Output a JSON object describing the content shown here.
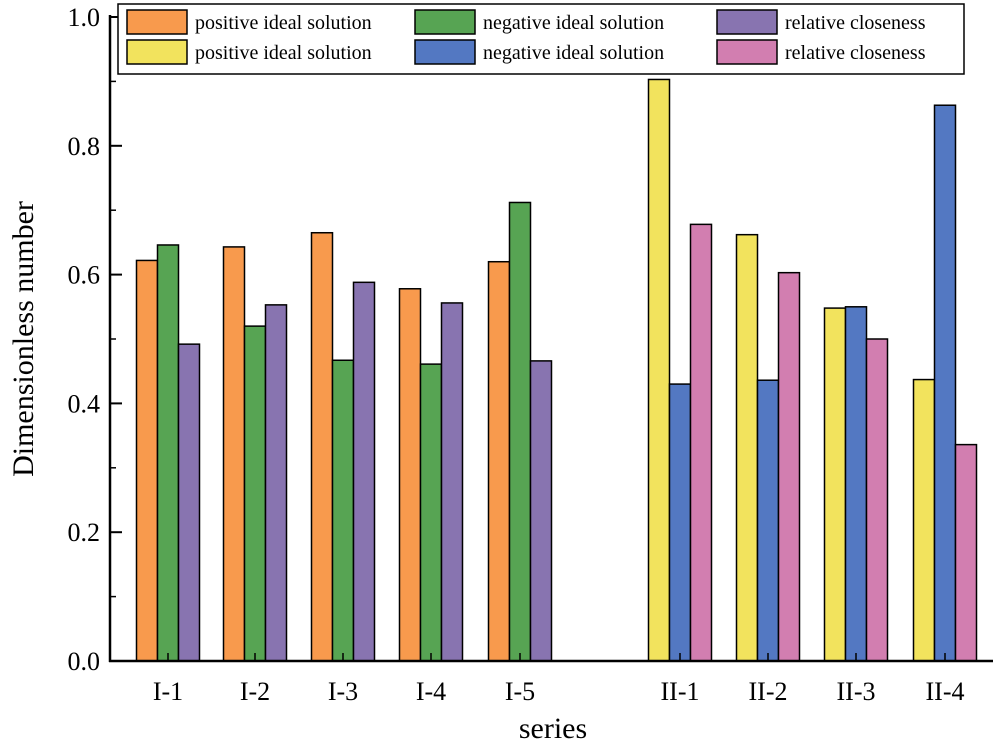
{
  "chart_data": {
    "type": "bar",
    "title": "",
    "xlabel": "series",
    "ylabel": "Dimensionless number",
    "ylim": [
      0,
      1.0
    ],
    "yticks": [
      "0.0",
      "0.2",
      "0.4",
      "0.6",
      "0.8",
      "1.0"
    ],
    "groups": [
      {
        "name": "I",
        "categories": [
          "I-1",
          "I-2",
          "I-3",
          "I-4",
          "I-5"
        ],
        "series": [
          {
            "name": "positive ideal solution",
            "color": "#F89A4D",
            "values": [
              0.622,
              0.643,
              0.665,
              0.578,
              0.62
            ]
          },
          {
            "name": "negative ideal solution",
            "color": "#57A453",
            "values": [
              0.646,
              0.52,
              0.467,
              0.461,
              0.712
            ]
          },
          {
            "name": "relative closeness",
            "color": "#8874B0",
            "values": [
              0.492,
              0.553,
              0.588,
              0.556,
              0.466
            ]
          }
        ]
      },
      {
        "name": "II",
        "categories": [
          "II-1",
          "II-2",
          "II-3",
          "II-4"
        ],
        "series": [
          {
            "name": "positive ideal solution",
            "color": "#F2E35D",
            "values": [
              0.903,
              0.662,
              0.548,
              0.437
            ]
          },
          {
            "name": "negative ideal solution",
            "color": "#5378C2",
            "values": [
              0.43,
              0.436,
              0.55,
              0.863
            ]
          },
          {
            "name": "relative closeness",
            "color": "#D27EB0",
            "values": [
              0.678,
              0.603,
              0.5,
              0.336
            ]
          }
        ]
      }
    ],
    "legend": {
      "placement": "top",
      "entries": [
        {
          "label": "positive ideal solution",
          "color": "#F89A4D"
        },
        {
          "label": "negative ideal solution",
          "color": "#57A453"
        },
        {
          "label": "relative closeness",
          "color": "#8874B0"
        },
        {
          "label": "positive ideal solution",
          "color": "#F2E35D"
        },
        {
          "label": "negative ideal solution",
          "color": "#5378C2"
        },
        {
          "label": "relative closeness",
          "color": "#D27EB0"
        }
      ]
    }
  }
}
